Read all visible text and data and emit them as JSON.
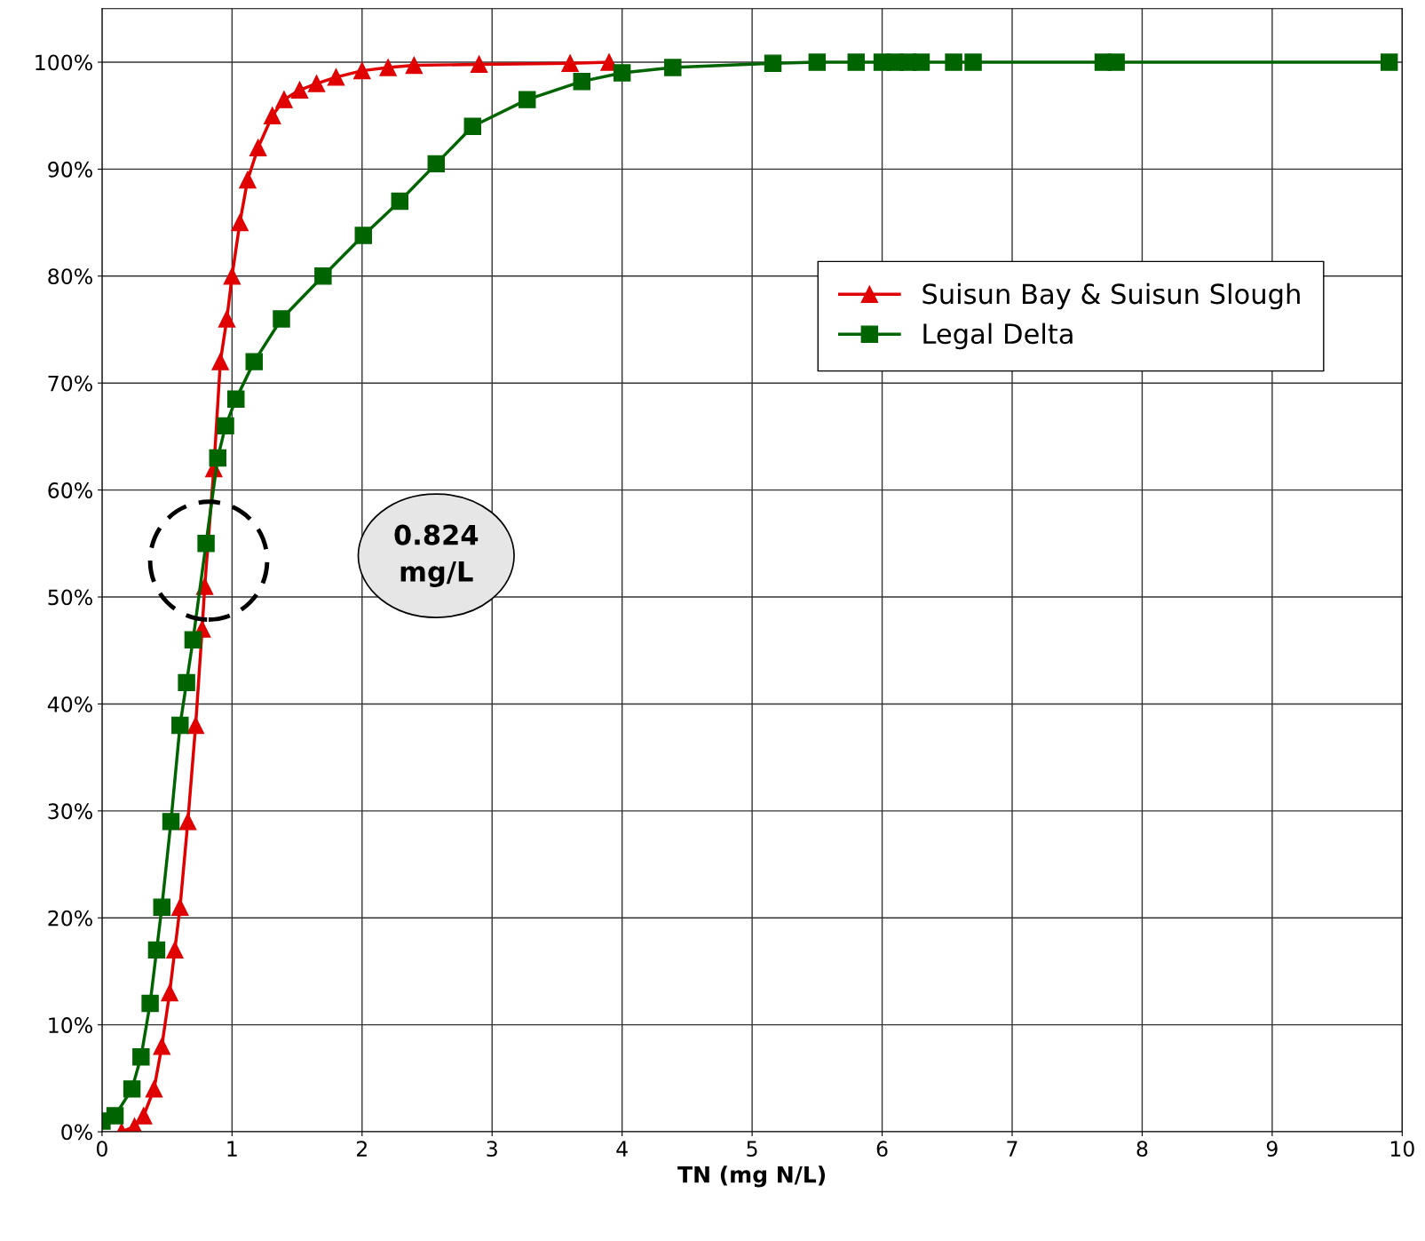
{
  "chart_data": {
    "type": "line",
    "xlabel": "TN (mg N/L)",
    "xlim": [
      0,
      10
    ],
    "ylim": [
      0,
      105
    ],
    "xticks": [
      0,
      1,
      2,
      3,
      4,
      5,
      6,
      7,
      8,
      9,
      10
    ],
    "yticks": [
      {
        "value": 0,
        "label": "0%"
      },
      {
        "value": 10,
        "label": "10%"
      },
      {
        "value": 20,
        "label": "20%"
      },
      {
        "value": 30,
        "label": "30%"
      },
      {
        "value": 40,
        "label": "40%"
      },
      {
        "value": 50,
        "label": "50%"
      },
      {
        "value": 60,
        "label": "60%"
      },
      {
        "value": 70,
        "label": "70%"
      },
      {
        "value": 80,
        "label": "80%"
      },
      {
        "value": 90,
        "label": "90%"
      },
      {
        "value": 100,
        "label": "100%"
      }
    ],
    "grid": true,
    "legend": "top right",
    "line_style": "solid",
    "annotations": [
      "0.824 mg/L"
    ],
    "series": [
      {
        "name": "Suisun Bay & Suisun Slough",
        "color": "#e00000",
        "marker": "triangle",
        "x": [
          0.15,
          0.25,
          0.32,
          0.4,
          0.46,
          0.52,
          0.56,
          0.6,
          0.66,
          0.72,
          0.77,
          0.79,
          0.86,
          0.91,
          0.96,
          1.0,
          1.06,
          1.12,
          1.2,
          1.31,
          1.4,
          1.52,
          1.65,
          1.8,
          2.0,
          2.2,
          2.4,
          2.9,
          3.6,
          3.9
        ],
        "values": [
          0,
          0.5,
          1.5,
          4,
          8,
          13,
          17,
          21,
          29,
          38,
          47,
          51,
          62,
          72,
          76,
          80,
          85,
          89,
          92,
          95,
          96.5,
          97.4,
          98,
          98.6,
          99.2,
          99.5,
          99.7,
          99.8,
          99.9,
          100
        ]
      },
      {
        "name": "Legal Delta",
        "color": "#006400",
        "marker": "square",
        "x": [
          0,
          0.1,
          0.23,
          0.3,
          0.37,
          0.42,
          0.46,
          0.53,
          0.6,
          0.65,
          0.7,
          0.8,
          0.89,
          0.95,
          1.03,
          1.17,
          1.38,
          1.7,
          2.01,
          2.29,
          2.57,
          2.85,
          3.27,
          3.69,
          4.0,
          4.39,
          5.16,
          5.5,
          5.8,
          6.0,
          6.1,
          6.2,
          6.3,
          6.55,
          6.7,
          7.7,
          7.8,
          9.9
        ],
        "values": [
          1,
          1.5,
          4,
          7,
          12,
          17,
          21,
          29,
          38,
          42,
          46,
          55,
          63,
          66,
          68.5,
          72,
          76,
          80,
          83.8,
          87,
          90.5,
          94,
          96.5,
          98.2,
          99,
          99.5,
          99.9,
          100,
          100,
          100,
          100,
          100,
          100,
          100,
          100,
          100,
          100,
          100
        ]
      }
    ]
  }
}
